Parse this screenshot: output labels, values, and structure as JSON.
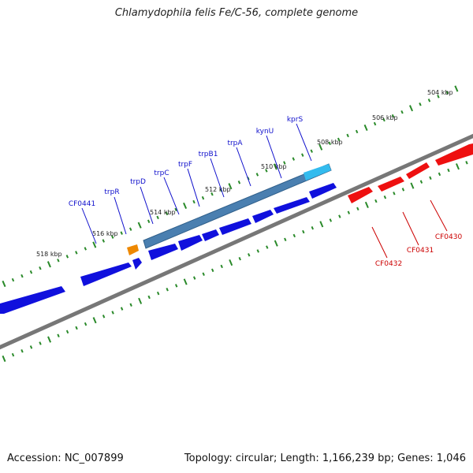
{
  "title": "Chlamydophila felis Fe/C-56, complete genome",
  "footer": {
    "accession": "Accession: NC_007899",
    "stats": "Topology: circular; Length: 1,166,239 bp; Genes: 1,046"
  },
  "ruler_labels": [
    "504 kbp",
    "506 kbp",
    "508 kbp",
    "510 kbp",
    "512 kbp",
    "514 kbp",
    "516 kbp",
    "518 kbp"
  ],
  "forward_gene_labels": [
    "CF0441",
    "trpR",
    "trpD",
    "trpC",
    "trpF",
    "trpB1",
    "trpA",
    "kynU",
    "kprS"
  ],
  "reverse_gene_labels": [
    "CF0430",
    "CF0431",
    "CF0432"
  ],
  "colors": {
    "forward_label": "#1010cc",
    "reverse_label": "#cc0000",
    "forward_gene": "#1010ee",
    "reverse_gene": "#ee1010",
    "operon": "#4a7fb0",
    "highlight_gene": "#33bbee",
    "orange_gene": "#ee8800",
    "ruler_tick": "#2a8a2a",
    "backbone": "#888888"
  }
}
